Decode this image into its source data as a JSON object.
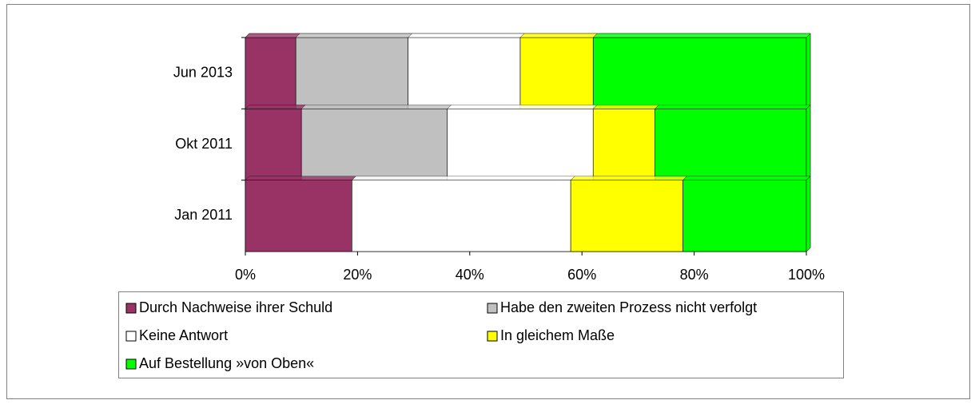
{
  "chart_data": {
    "type": "bar",
    "orientation": "horizontal",
    "stacked": true,
    "categories": [
      "Jun 2013",
      "Okt 2011",
      "Jan 2011"
    ],
    "series": [
      {
        "name": "Durch Nachweise ihrer Schuld",
        "color": "#993366",
        "values": [
          9,
          10,
          19
        ]
      },
      {
        "name": "Habe den zweiten Prozess nicht verfolgt",
        "color": "#c0c0c0",
        "values": [
          20,
          26,
          0
        ]
      },
      {
        "name": "Keine Antwort",
        "color": "#ffffff",
        "values": [
          20,
          26,
          39
        ]
      },
      {
        "name": "In gleichem Maße",
        "color": "#ffff00",
        "values": [
          13,
          11,
          20
        ]
      },
      {
        "name": "Auf Bestellung »von Oben«",
        "color": "#00ff00",
        "values": [
          38,
          27,
          22
        ]
      }
    ],
    "xlim": [
      0,
      100
    ],
    "xticks": [
      {
        "value": 0,
        "label": "0%"
      },
      {
        "value": 20,
        "label": "20%"
      },
      {
        "value": 40,
        "label": "40%"
      },
      {
        "value": 60,
        "label": "60%"
      },
      {
        "value": 80,
        "label": "80%"
      },
      {
        "value": 100,
        "label": "100%"
      }
    ],
    "legend": "bottom"
  }
}
